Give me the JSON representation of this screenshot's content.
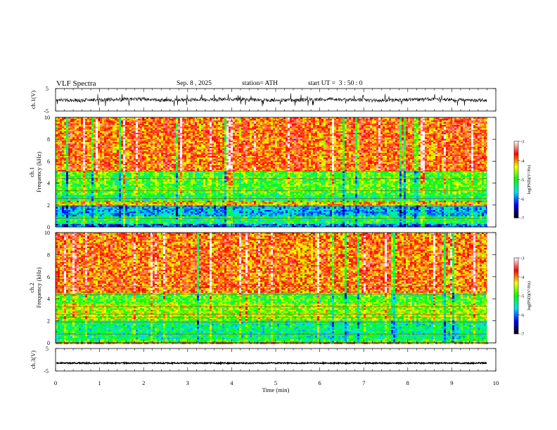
{
  "header": {
    "title": "VLF Spectra",
    "date": "Sep. 8 , 2025",
    "station": "station= ATH",
    "start": "start UT =  3 : 50 : 0"
  },
  "chart_data": [
    {
      "type": "line",
      "ylabel": "ch.1(V)",
      "ylim": [
        -5,
        5
      ],
      "yticks": [
        -5,
        5
      ],
      "xlim": [
        0,
        10
      ],
      "series": [
        {
          "style": "dense noisy waveform, mostly within ±1 V with spikes to ±3 V"
        }
      ]
    },
    {
      "type": "heatmap",
      "ylabel": "ch.1\nFrequency (kHz)",
      "ylim": [
        0,
        10
      ],
      "yticks": [
        0,
        2,
        4,
        6,
        8,
        10
      ],
      "xlim": [
        0,
        10
      ],
      "data_xmax": 9.8,
      "colorbar": {
        "label": "log(PSD)(V²/Hz)",
        "range": [
          -7,
          -3
        ],
        "ticks": [
          -3,
          -4,
          -5,
          -6,
          -7
        ]
      },
      "bands": [
        {
          "f": [
            0,
            0.3
          ],
          "level": -6.0
        },
        {
          "f": [
            0.3,
            1.0
          ],
          "level": -5.2
        },
        {
          "f": [
            1.0,
            2.0
          ],
          "level": -5.8
        },
        {
          "f": [
            2.0,
            2.4
          ],
          "level": -4.3
        },
        {
          "f": [
            2.4,
            3.0
          ],
          "level": -5.2
        },
        {
          "f": [
            3.0,
            5.0
          ],
          "level": -4.9
        },
        {
          "f": [
            5.0,
            10.0
          ],
          "level": -3.9
        }
      ]
    },
    {
      "type": "heatmap",
      "ylabel": "ch.2\nFrequency (kHz)",
      "ylim": [
        0,
        10
      ],
      "yticks": [
        0,
        2,
        4,
        6,
        8,
        10
      ],
      "xlim": [
        0,
        10
      ],
      "data_xmax": 9.8,
      "colorbar": {
        "label": "log(PSD)(V²/Hz)",
        "range": [
          -7,
          -3
        ],
        "ticks": [
          -3,
          -4,
          -5,
          -6,
          -7
        ]
      },
      "bands": [
        {
          "f": [
            0,
            0.4
          ],
          "level": -5.0
        },
        {
          "f": [
            0.4,
            2.0
          ],
          "level": -5.3
        },
        {
          "f": [
            2.0,
            3.5
          ],
          "level": -4.6
        },
        {
          "f": [
            3.5,
            4.5
          ],
          "level": -4.9
        },
        {
          "f": [
            4.5,
            10.0
          ],
          "level": -3.9
        }
      ]
    },
    {
      "type": "line",
      "ylabel": "ch.3(V)",
      "ylim": [
        -5,
        5
      ],
      "yticks": [
        -5,
        5
      ],
      "xlim": [
        0,
        10
      ],
      "xlabel": "Time (min)",
      "xticks": [
        0,
        1,
        2,
        3,
        4,
        5,
        6,
        7,
        8,
        9,
        10
      ],
      "series": [
        {
          "style": "nearly flat trace around -1.5 V"
        }
      ]
    }
  ],
  "colors": {
    "colormap": [
      "#000000",
      "#0000ff",
      "#00e0ff",
      "#00ff00",
      "#ffff00",
      "#ff0000",
      "#ffffff"
    ]
  }
}
